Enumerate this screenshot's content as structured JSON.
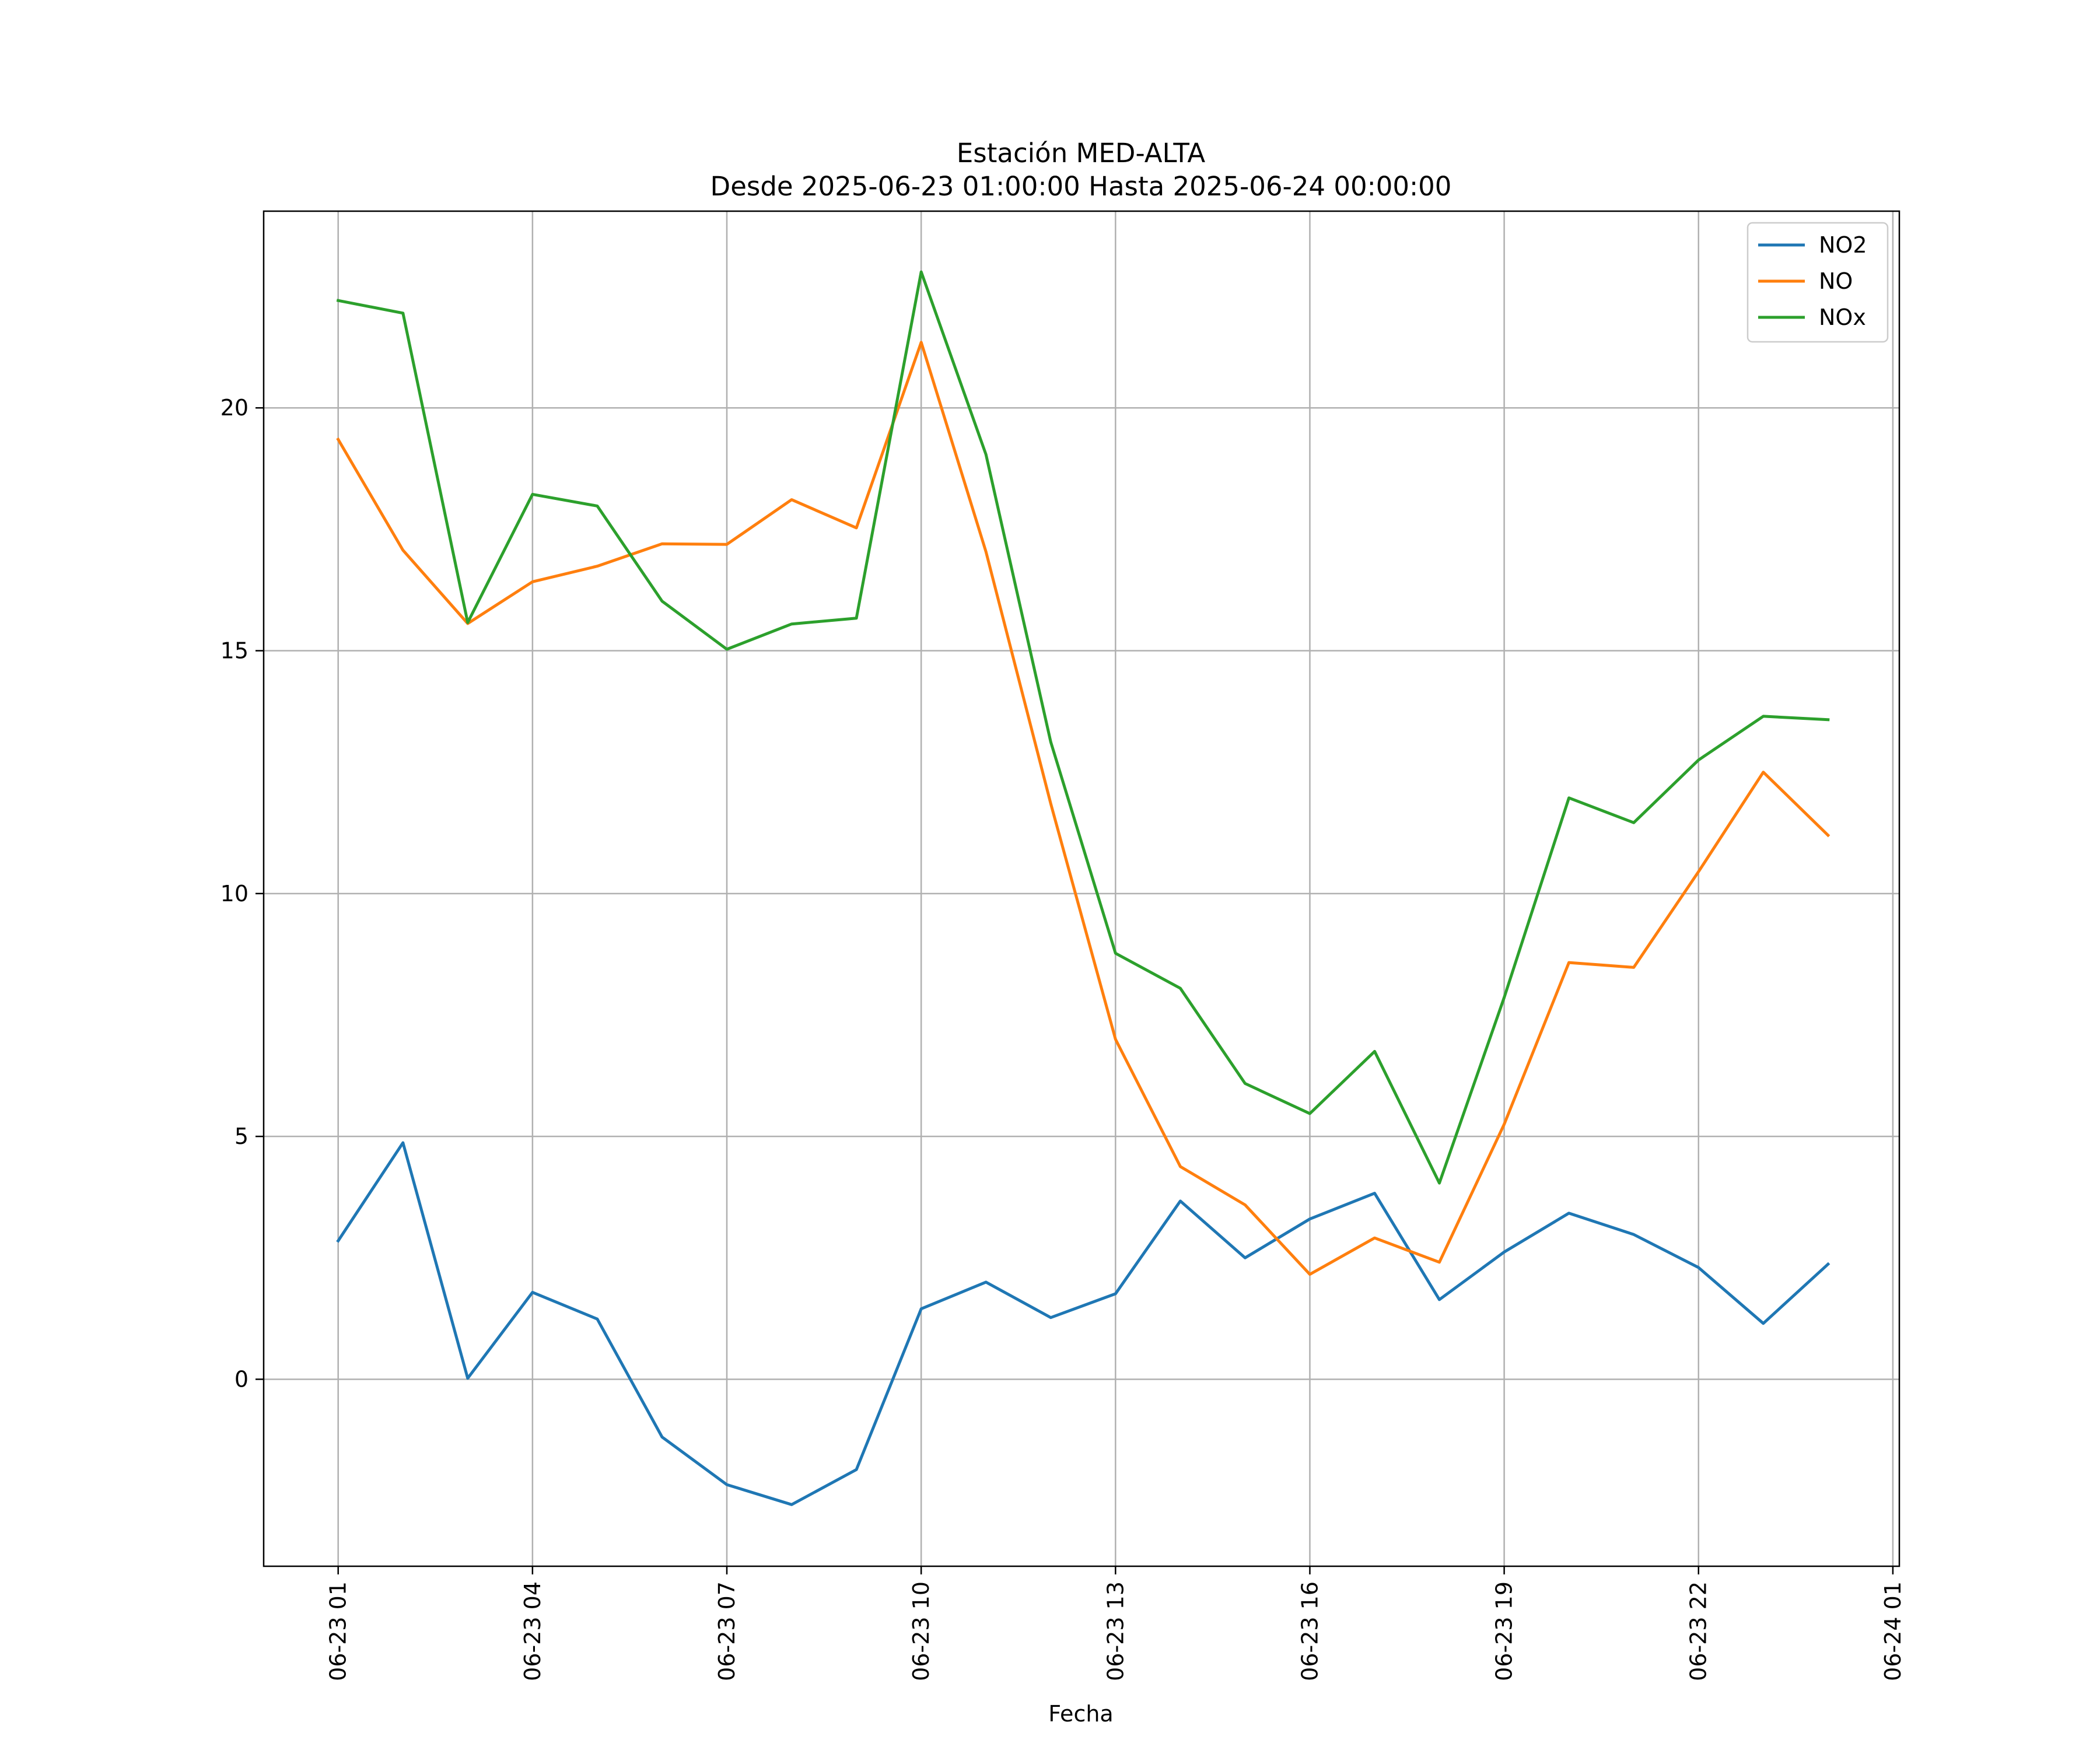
{
  "chart_data": {
    "type": "line",
    "title": "Estación MED-ALTA",
    "subtitle": "Desde 2025-06-23 01:00:00 Hasta 2025-06-24 00:00:00",
    "xlabel": "Fecha",
    "ylabel": "",
    "x_tick_labels": [
      "06-23 01",
      "06-23 04",
      "06-23 07",
      "06-23 10",
      "06-23 13",
      "06-23 16",
      "06-23 19",
      "06-23 22",
      "06-24 01"
    ],
    "x_ticks_hours": [
      1,
      4,
      7,
      10,
      13,
      16,
      19,
      22,
      25
    ],
    "y_ticks": [
      0,
      5,
      10,
      15,
      20
    ],
    "y_tick_labels": [
      "0",
      "5",
      "10",
      "15",
      "20"
    ],
    "xlim_hours": [
      -0.15,
      25.1
    ],
    "ylim": [
      -3.85,
      24.05
    ],
    "grid": true,
    "legend_position": "upper right",
    "x": [
      "2025-06-23 01:00",
      "2025-06-23 02:00",
      "2025-06-23 03:00",
      "2025-06-23 04:00",
      "2025-06-23 05:00",
      "2025-06-23 06:00",
      "2025-06-23 07:00",
      "2025-06-23 08:00",
      "2025-06-23 09:00",
      "2025-06-23 10:00",
      "2025-06-23 11:00",
      "2025-06-23 12:00",
      "2025-06-23 13:00",
      "2025-06-23 14:00",
      "2025-06-23 15:00",
      "2025-06-23 16:00",
      "2025-06-23 17:00",
      "2025-06-23 18:00",
      "2025-06-23 19:00",
      "2025-06-23 20:00",
      "2025-06-23 21:00",
      "2025-06-23 22:00",
      "2025-06-23 23:00",
      "2025-06-24 00:00"
    ],
    "series": [
      {
        "name": "NO2",
        "color": "#1f77b4",
        "values": [
          2.85,
          4.87,
          0.02,
          1.79,
          1.24,
          -1.19,
          -2.17,
          -2.58,
          -1.86,
          1.45,
          2.0,
          1.27,
          1.76,
          3.67,
          2.5,
          3.3,
          3.83,
          1.64,
          2.62,
          3.42,
          2.98,
          2.3,
          1.15,
          2.37
        ]
      },
      {
        "name": "NO",
        "color": "#ff7f0e",
        "values": [
          19.35,
          17.07,
          15.56,
          16.42,
          16.74,
          17.2,
          17.19,
          18.11,
          17.53,
          21.35,
          17.04,
          11.85,
          7.0,
          4.38,
          3.59,
          2.16,
          2.91,
          2.41,
          5.25,
          8.58,
          8.48,
          10.45,
          12.5,
          11.2
        ]
      },
      {
        "name": "NOx",
        "color": "#2ca02c",
        "values": [
          22.21,
          21.95,
          15.58,
          18.22,
          17.98,
          16.02,
          15.03,
          15.55,
          15.67,
          22.8,
          19.04,
          13.12,
          8.77,
          8.05,
          6.09,
          5.47,
          6.75,
          4.04,
          7.86,
          11.97,
          11.46,
          12.75,
          13.65,
          13.58
        ]
      }
    ]
  }
}
